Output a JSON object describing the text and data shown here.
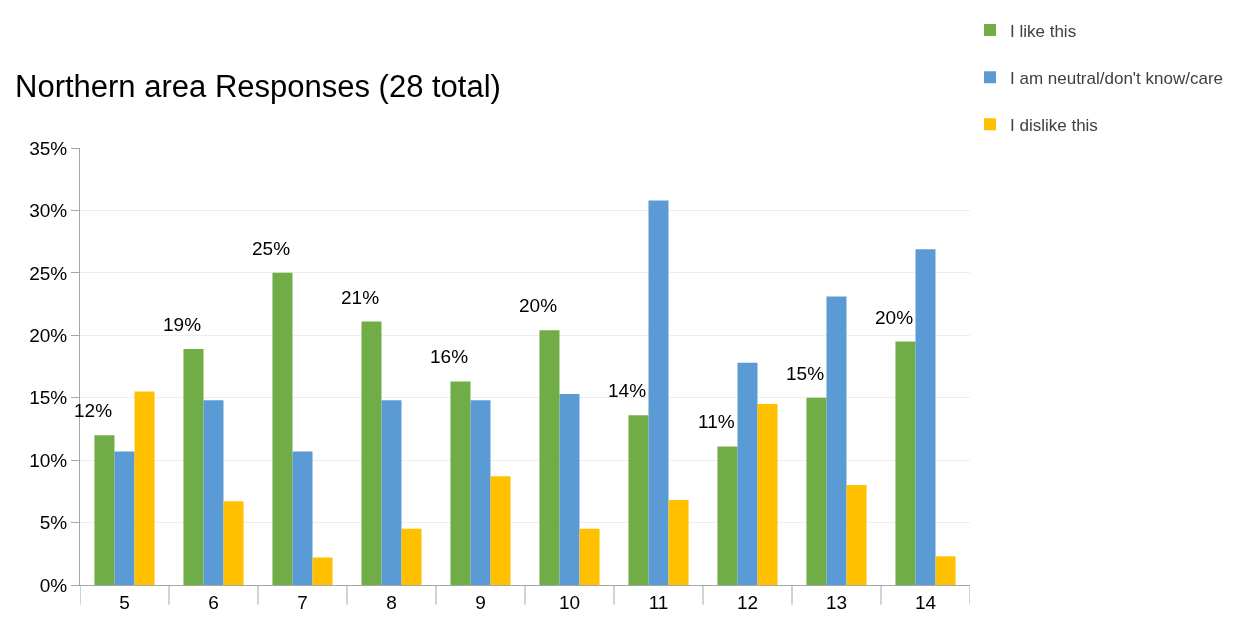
{
  "chart_data": {
    "type": "bar",
    "title": "Northern area Responses (28 total)",
    "categories": [
      "5",
      "6",
      "7",
      "8",
      "9",
      "10",
      "11",
      "12",
      "13",
      "14"
    ],
    "series": [
      {
        "name": "I like this",
        "color": "#70ad47",
        "values": [
          12.0,
          18.9,
          25.0,
          21.1,
          16.3,
          20.4,
          13.6,
          11.1,
          15.0,
          19.5
        ],
        "value_labels": [
          "12%",
          "19%",
          "25%",
          "21%",
          "16%",
          "20%",
          "14%",
          "11%",
          "15%",
          "20%"
        ]
      },
      {
        "name": "I am neutral/don't know/care",
        "color": "#5b9bd5",
        "values": [
          10.7,
          14.8,
          10.7,
          14.8,
          14.8,
          15.3,
          30.8,
          17.8,
          23.1,
          26.9
        ]
      },
      {
        "name": "I dislike this",
        "color": "#ffc000",
        "values": [
          15.5,
          6.7,
          2.2,
          4.5,
          8.7,
          4.5,
          6.8,
          14.5,
          8.0,
          2.3
        ]
      }
    ],
    "ylim": [
      0,
      35
    ],
    "yticks": [
      {
        "value": 0,
        "label": "0%"
      },
      {
        "value": 5,
        "label": "5%"
      },
      {
        "value": 10,
        "label": "10%"
      },
      {
        "value": 15,
        "label": "15%"
      },
      {
        "value": 20,
        "label": "20%"
      },
      {
        "value": 25,
        "label": "25%"
      },
      {
        "value": 30,
        "label": "30%"
      },
      {
        "value": 35,
        "label": "35%"
      }
    ],
    "grid": "y",
    "legend": "top right"
  }
}
